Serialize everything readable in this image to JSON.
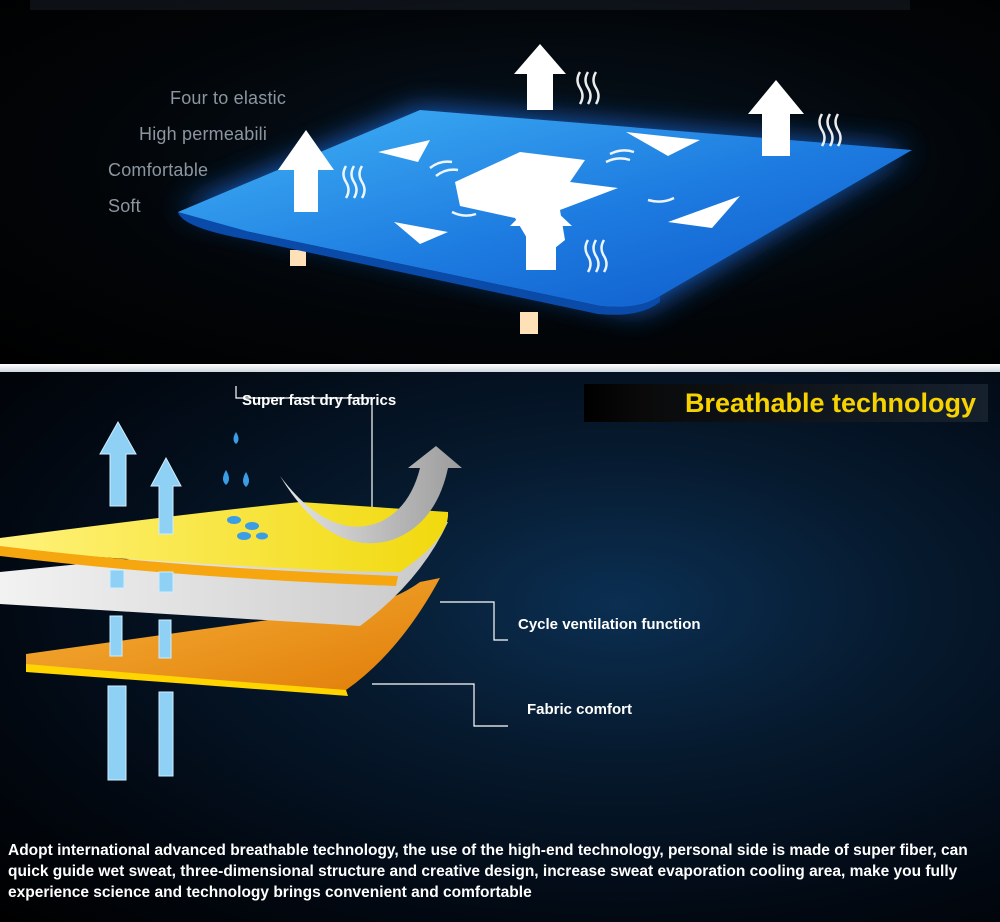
{
  "top_panel": {
    "features": [
      "Four to elastic",
      "High permeabili",
      "Comfortable",
      "Soft"
    ]
  },
  "bottom_panel": {
    "headline": "Breathable technology",
    "labels": {
      "dry": "Super fast dry fabrics",
      "cycle": "Cycle ventilation function",
      "comfort": "Fabric comfort"
    },
    "description": "Adopt international advanced breathable technology, the use of the high-end technology, personal side is made of super fiber, can quick guide wet sweat, three-dimensional structure and creative design, increase sweat evaporation cooling area, make you fully experience science and technology brings convenient and comfortable"
  },
  "colors": {
    "headline": "#f6d200",
    "fabric_blue": "#2f8fe8",
    "yellow_layer": "#f3e33a",
    "orange_layer": "#f39a1b",
    "arrow_blue": "#8fd0f5"
  }
}
